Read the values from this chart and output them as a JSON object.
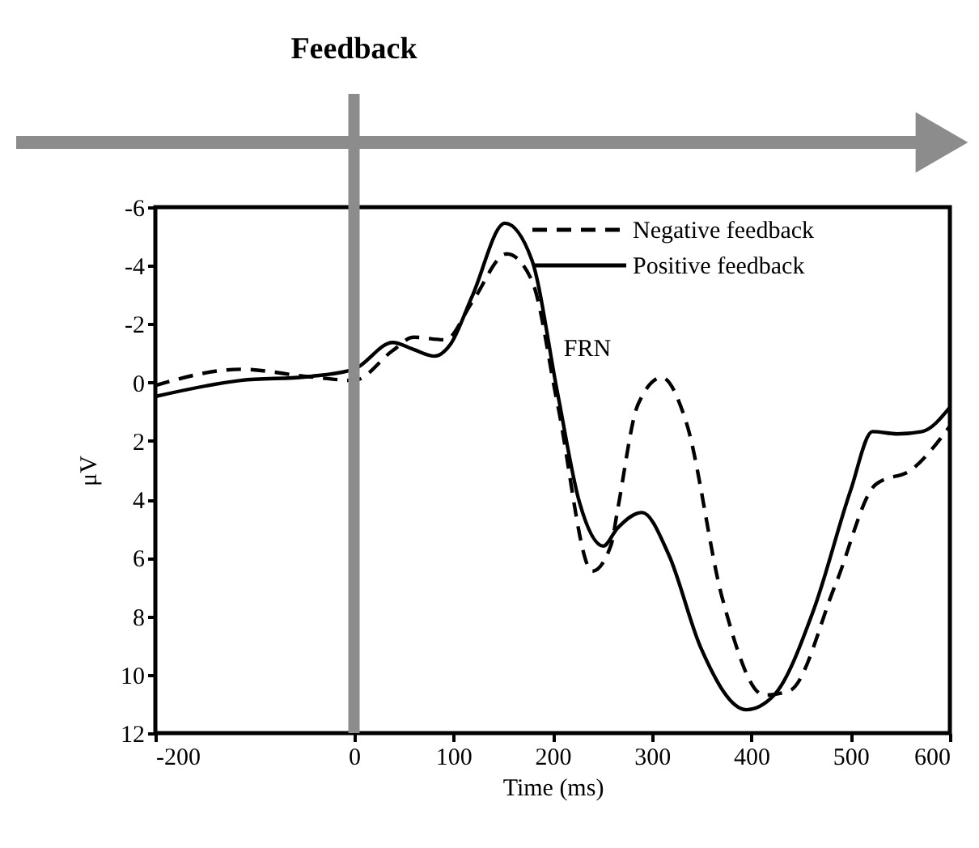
{
  "chart_data": {
    "type": "line",
    "xlabel": "Time (ms)",
    "ylabel": "μV",
    "x": [
      -200,
      -114,
      -46,
      0,
      39,
      60,
      81,
      97,
      119,
      152,
      179,
      205,
      227,
      251,
      265,
      290,
      317,
      349,
      395,
      423,
      463,
      500,
      522,
      547,
      572,
      600
    ],
    "series": [
      {
        "name": "Negative feedback",
        "color": "#000000",
        "line_style": "dashed",
        "x": [
          -200,
          -114,
          -46,
          0,
          39,
          60,
          92,
          119,
          154,
          179,
          205,
          240,
          259,
          265,
          286,
          310,
          334,
          371,
          413,
          439,
          485,
          525,
          562,
          600
        ],
        "values": [
          0.1,
          -0.45,
          -0.2,
          -0.07,
          -1.09,
          -1.55,
          -1.46,
          -2.75,
          -4.4,
          -3.5,
          0.75,
          6.46,
          5.55,
          4.45,
          0.75,
          -0.17,
          1.3,
          7.4,
          10.7,
          10.54,
          6.9,
          3.5,
          2.97,
          1.5
        ]
      },
      {
        "name": "Positive feedback",
        "color": "#000000",
        "line_style": "solid",
        "values": [
          0.48,
          -0.07,
          -0.2,
          -0.45,
          -1.37,
          -1.13,
          -0.9,
          -1.3,
          -2.95,
          -5.45,
          -4.2,
          0.37,
          4.1,
          5.6,
          5.0,
          4.45,
          5.9,
          9.06,
          11.2,
          10.7,
          7.77,
          3.7,
          1.68,
          1.76,
          1.68,
          0.85
        ]
      }
    ],
    "xlim": [
      -200,
      600
    ],
    "xticks": [
      -200,
      0,
      100,
      200,
      300,
      400,
      500,
      600
    ],
    "ylim": [
      12,
      -6
    ],
    "yticks": [
      -6,
      -4,
      -2,
      0,
      2,
      4,
      6,
      8,
      10,
      12
    ],
    "ref_lines": [
      {
        "axis": "x",
        "value": 0,
        "label": "Feedback",
        "color": "#8c8c8c"
      }
    ],
    "annotations": [
      "FRN"
    ],
    "legend": "top right",
    "grid": false
  }
}
